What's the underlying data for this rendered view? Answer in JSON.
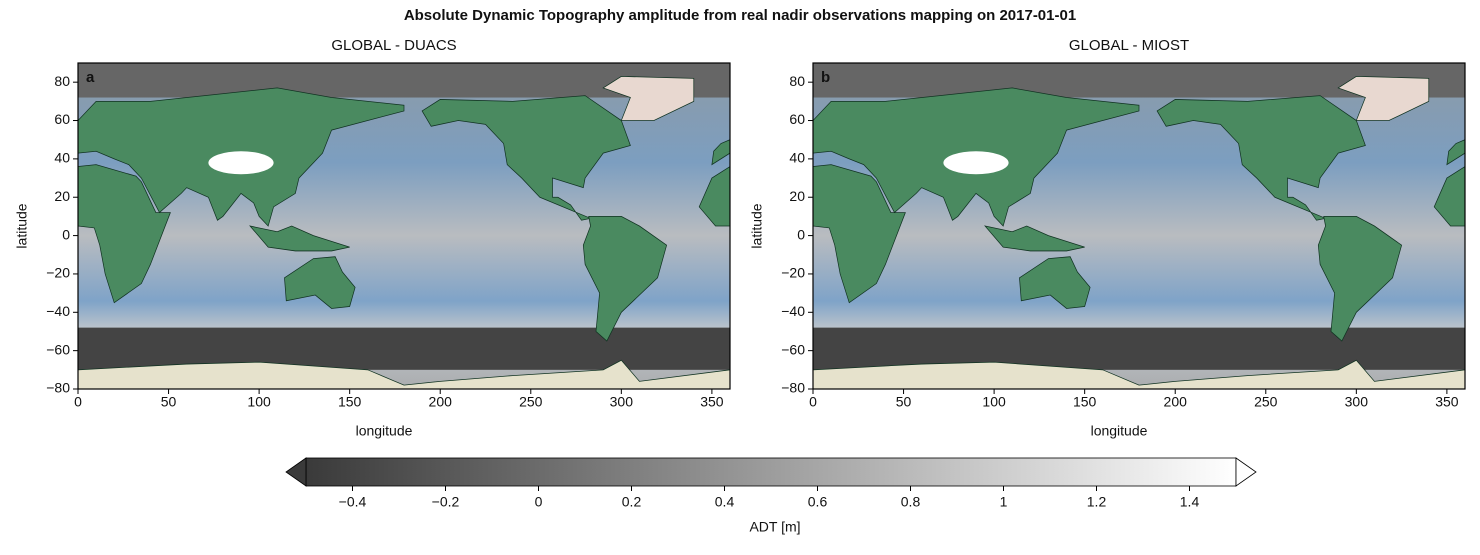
{
  "title": "Absolute Dynamic Topography amplitude from real nadir observations mapping on 2017-01-01",
  "chart_data": [
    {
      "type": "map",
      "subtitle": "GLOBAL - DUACS",
      "panel_label": "a",
      "xlabel": "longitude",
      "ylabel": "latitude",
      "xlim": [
        0,
        360
      ],
      "ylim": [
        -80,
        90
      ],
      "xticks": [
        0,
        50,
        100,
        150,
        200,
        250,
        300,
        350
      ],
      "yticks": [
        {
          "value": -80,
          "label": "−80"
        },
        {
          "value": -60,
          "label": "−60"
        },
        {
          "value": -40,
          "label": "−40"
        },
        {
          "value": -20,
          "label": "−20"
        },
        0,
        20,
        40,
        60,
        80
      ]
    },
    {
      "type": "map",
      "subtitle": "GLOBAL - MIOST",
      "panel_label": "b",
      "xlabel": "longitude",
      "ylabel": "latitude",
      "xlim": [
        0,
        360
      ],
      "ylim": [
        -80,
        90
      ],
      "xticks": [
        0,
        50,
        100,
        150,
        200,
        250,
        300,
        350
      ],
      "yticks": [
        {
          "value": -80,
          "label": "−80"
        },
        {
          "value": -60,
          "label": "−60"
        },
        {
          "value": -40,
          "label": "−40"
        },
        {
          "value": -20,
          "label": "−20"
        },
        0,
        20,
        40,
        60,
        80
      ]
    }
  ],
  "colorbar": {
    "label": "ADT [m]",
    "clim": [
      -0.5,
      1.5
    ],
    "colors": [
      "#3a3a3a",
      "#ffffff"
    ],
    "ticks": [
      {
        "value": -0.4,
        "label": "−0.4"
      },
      {
        "value": -0.2,
        "label": "−0.2"
      },
      0,
      0.2,
      0.4,
      0.6,
      0.8,
      1,
      1.2,
      1.4
    ]
  }
}
